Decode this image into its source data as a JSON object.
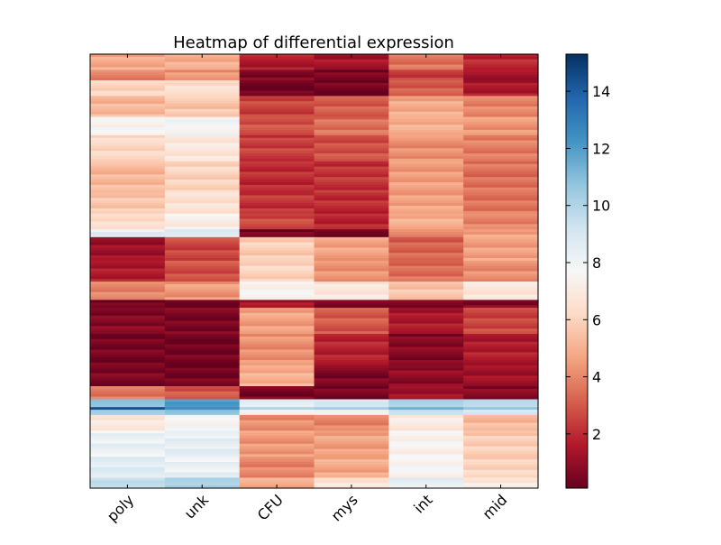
{
  "chart_data": {
    "type": "heatmap",
    "title": "Heatmap of differential expression",
    "columns": [
      "poly",
      "unk",
      "CFU",
      "mys",
      "int",
      "mid"
    ],
    "colormap": "RdBu",
    "color_range": [
      0.1,
      15.3
    ],
    "colorbar_ticks": [
      2,
      4,
      6,
      8,
      10,
      12,
      14
    ],
    "colorbar_tick_labels": [
      "2",
      "4",
      "6",
      "8",
      "10",
      "12",
      "14"
    ],
    "row_blocks": [
      {
        "rows": 6,
        "values": [
          4.8,
          5.0,
          1.6,
          1.3,
          3.5,
          2.0
        ]
      },
      {
        "rows": 4,
        "values": [
          4.0,
          4.2,
          0.6,
          0.5,
          2.5,
          1.2
        ]
      },
      {
        "rows": 6,
        "values": [
          6.0,
          6.5,
          0.3,
          0.3,
          3.0,
          1.5
        ]
      },
      {
        "rows": 8,
        "values": [
          5.2,
          5.6,
          2.5,
          3.0,
          4.8,
          4.0
        ]
      },
      {
        "rows": 7,
        "values": [
          7.6,
          7.8,
          2.8,
          3.5,
          5.0,
          4.4
        ]
      },
      {
        "rows": 10,
        "values": [
          6.2,
          6.8,
          2.4,
          2.8,
          4.2,
          3.8
        ]
      },
      {
        "rows": 12,
        "values": [
          5.2,
          6.0,
          2.0,
          2.2,
          4.5,
          3.5
        ]
      },
      {
        "rows": 8,
        "values": [
          5.6,
          6.6,
          2.2,
          2.0,
          4.6,
          3.6
        ]
      },
      {
        "rows": 6,
        "values": [
          6.4,
          7.2,
          2.6,
          1.8,
          5.0,
          4.0
        ]
      },
      {
        "rows": 3,
        "values": [
          8.4,
          8.8,
          0.4,
          0.5,
          3.8,
          4.6
        ]
      },
      {
        "rows": 9,
        "values": [
          1.2,
          2.6,
          5.8,
          4.6,
          3.2,
          4.6
        ]
      },
      {
        "rows": 8,
        "values": [
          1.6,
          2.8,
          6.0,
          4.2,
          3.4,
          4.2
        ]
      },
      {
        "rows": 7,
        "values": [
          4.0,
          4.4,
          7.4,
          6.8,
          5.6,
          6.8
        ]
      },
      {
        "rows": 3,
        "values": [
          0.2,
          0.3,
          1.4,
          0.8,
          0.3,
          0.6
        ]
      },
      {
        "rows": 10,
        "values": [
          0.7,
          0.5,
          4.6,
          3.0,
          1.5,
          2.6
        ]
      },
      {
        "rows": 12,
        "values": [
          0.4,
          0.3,
          4.2,
          1.8,
          0.7,
          1.6
        ]
      },
      {
        "rows": 8,
        "values": [
          0.5,
          0.3,
          5.0,
          0.6,
          0.9,
          1.2
        ]
      },
      {
        "rows": 5,
        "values": [
          3.6,
          3.0,
          0.5,
          0.4,
          1.2,
          0.8
        ]
      },
      {
        "rows": 3,
        "values": [
          10.8,
          12.0,
          8.6,
          9.0,
          10.2,
          9.6
        ]
      },
      {
        "rows": 1,
        "values": [
          14.6,
          12.4,
          9.8,
          10.4,
          11.2,
          10.8
        ]
      },
      {
        "rows": 2,
        "values": [
          10.2,
          11.0,
          7.2,
          7.6,
          9.4,
          9.0
        ]
      },
      {
        "rows": 6,
        "values": [
          6.8,
          7.6,
          4.2,
          4.0,
          7.0,
          5.2
        ]
      },
      {
        "rows": 10,
        "values": [
          8.2,
          8.4,
          4.4,
          4.6,
          7.4,
          5.8
        ]
      },
      {
        "rows": 8,
        "values": [
          8.6,
          8.2,
          4.0,
          4.8,
          7.6,
          6.0
        ]
      },
      {
        "rows": 4,
        "values": [
          9.6,
          10.2,
          4.8,
          6.6,
          8.4,
          7.0
        ]
      }
    ]
  }
}
